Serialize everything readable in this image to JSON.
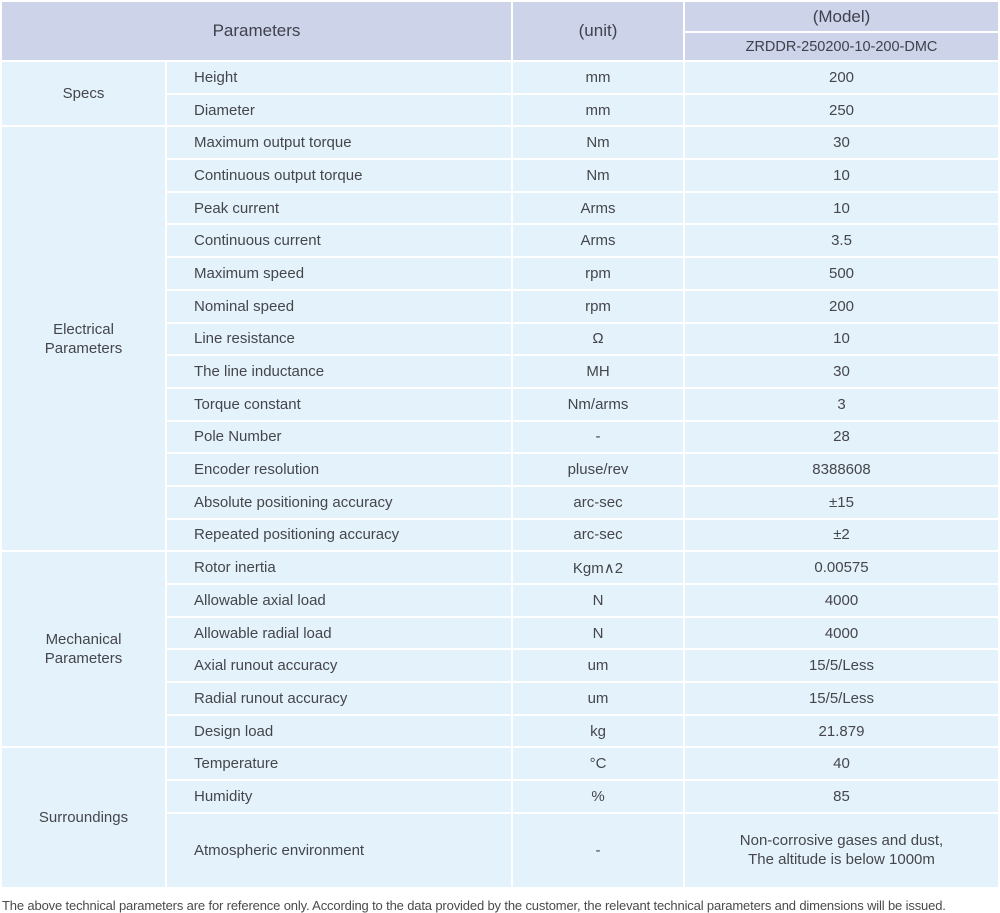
{
  "colors": {
    "header_bg": "#cdd3e9",
    "body_bg": "#e4f2fb",
    "grid": "#ffffff",
    "text": "#45464b"
  },
  "table": {
    "header": {
      "parameters_label": "Parameters",
      "unit_label": "(unit)",
      "model_label": "(Model)",
      "model_value": "ZRDDR-250200-10-200-DMC"
    },
    "groups": [
      {
        "name": "Specs",
        "rows": [
          {
            "parameter": "Height",
            "unit": "mm",
            "value": "200"
          },
          {
            "parameter": "Diameter",
            "unit": "mm",
            "value": "250"
          }
        ]
      },
      {
        "name": "Electrical\nParameters",
        "rows": [
          {
            "parameter": "Maximum output torque",
            "unit": "Nm",
            "value": "30"
          },
          {
            "parameter": "Continuous output torque",
            "unit": "Nm",
            "value": "10"
          },
          {
            "parameter": "Peak current",
            "unit": "Arms",
            "value": "10"
          },
          {
            "parameter": "Continuous current",
            "unit": "Arms",
            "value": "3.5"
          },
          {
            "parameter": "Maximum speed",
            "unit": "rpm",
            "value": "500"
          },
          {
            "parameter": "Nominal speed",
            "unit": "rpm",
            "value": "200"
          },
          {
            "parameter": "Line resistance",
            "unit": "Ω",
            "value": "10"
          },
          {
            "parameter": "The line inductance",
            "unit": "MH",
            "value": "30"
          },
          {
            "parameter": "Torque constant",
            "unit": "Nm/arms",
            "value": "3"
          },
          {
            "parameter": "Pole Number",
            "unit": "-",
            "value": "28"
          },
          {
            "parameter": "Encoder resolution",
            "unit": "pluse/rev",
            "value": "8388608"
          },
          {
            "parameter": "Absolute positioning accuracy",
            "unit": "arc-sec",
            "value": "±15"
          },
          {
            "parameter": "Repeated positioning accuracy",
            "unit": "arc-sec",
            "value": "±2"
          }
        ]
      },
      {
        "name": "Mechanical\nParameters",
        "rows": [
          {
            "parameter": "Rotor inertia",
            "unit": "Kgm∧2",
            "value": "0.00575"
          },
          {
            "parameter": "Allowable axial load",
            "unit": "N",
            "value": "4000"
          },
          {
            "parameter": "Allowable radial load",
            "unit": "N",
            "value": "4000"
          },
          {
            "parameter": "Axial runout accuracy",
            "unit": "um",
            "value": "15/5/Less"
          },
          {
            "parameter": "Radial runout accuracy",
            "unit": "um",
            "value": "15/5/Less"
          },
          {
            "parameter": "Design load",
            "unit": "kg",
            "value": "21.879"
          }
        ]
      },
      {
        "name": "Surroundings",
        "rows": [
          {
            "parameter": "Temperature",
            "unit": "°C",
            "value": "40"
          },
          {
            "parameter": "Humidity",
            "unit": "%",
            "value": "85"
          },
          {
            "parameter": "Atmospheric environment",
            "unit": "-",
            "value": "Non-corrosive gases and dust,\nThe altitude is below 1000m",
            "tall": true
          }
        ]
      }
    ],
    "footer_note": "The above technical parameters are for reference only. According to the data provided by the customer, the relevant technical parameters and dimensions will be issued."
  }
}
